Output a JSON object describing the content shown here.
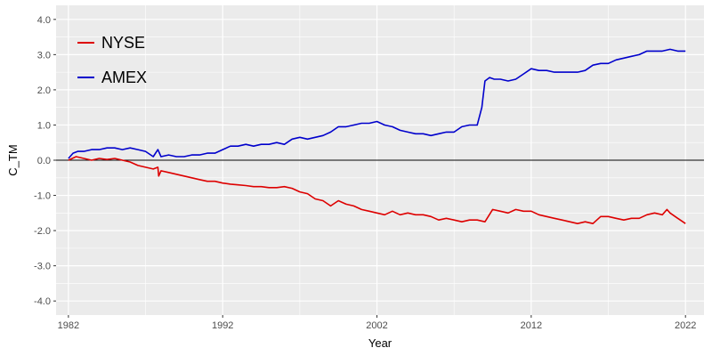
{
  "chart_data": {
    "type": "line",
    "xlabel": "Year",
    "ylabel": "C_TM",
    "xlim": [
      1981.2,
      2023.2
    ],
    "ylim": [
      -4.4,
      4.4
    ],
    "x_ticks": [
      {
        "value": 1982,
        "label": "1982"
      },
      {
        "value": 1992,
        "label": "1992"
      },
      {
        "value": 2002,
        "label": "2002"
      },
      {
        "value": 2012,
        "label": "2012"
      },
      {
        "value": 2022,
        "label": "2022"
      }
    ],
    "y_ticks": [
      {
        "value": 4,
        "label": "4.0"
      },
      {
        "value": 3,
        "label": "3.0"
      },
      {
        "value": 2,
        "label": "2.0"
      },
      {
        "value": 1,
        "label": "1.0"
      },
      {
        "value": 0,
        "label": "0.0"
      },
      {
        "value": -1,
        "label": "-1.0"
      },
      {
        "value": -2,
        "label": "-2.0"
      },
      {
        "value": -3,
        "label": "-3.0"
      },
      {
        "value": -4,
        "label": "-4.0"
      }
    ],
    "reference_line": {
      "y": 0,
      "color": "#000000"
    },
    "grid": true,
    "legend_position": "top-left",
    "background": "#ebebeb",
    "grid_color": "#ffffff",
    "series": [
      {
        "name": "NYSE",
        "color": "#dd0000",
        "x": [
          1982.0,
          1982.5,
          1983.0,
          1983.5,
          1984.0,
          1984.5,
          1985.0,
          1985.5,
          1986.0,
          1986.5,
          1987.0,
          1987.5,
          1987.8,
          1987.85,
          1988.0,
          1988.5,
          1989.0,
          1989.5,
          1990.0,
          1990.5,
          1991.0,
          1991.5,
          1992.0,
          1992.5,
          1993.0,
          1993.5,
          1994.0,
          1994.5,
          1995.0,
          1995.5,
          1996.0,
          1996.5,
          1997.0,
          1997.5,
          1998.0,
          1998.5,
          1999.0,
          1999.5,
          2000.0,
          2000.5,
          2001.0,
          2001.5,
          2002.0,
          2002.5,
          2003.0,
          2003.5,
          2004.0,
          2004.5,
          2005.0,
          2005.5,
          2006.0,
          2006.5,
          2007.0,
          2007.5,
          2008.0,
          2008.5,
          2009.0,
          2009.5,
          2010.0,
          2010.5,
          2011.0,
          2011.5,
          2012.0,
          2012.5,
          2013.0,
          2013.5,
          2014.0,
          2014.5,
          2015.0,
          2015.5,
          2016.0,
          2016.5,
          2017.0,
          2017.5,
          2018.0,
          2018.5,
          2019.0,
          2019.5,
          2020.0,
          2020.5,
          2020.8,
          2021.0,
          2021.5,
          2022.0
        ],
        "y": [
          0.0,
          0.1,
          0.05,
          0.0,
          0.05,
          0.02,
          0.05,
          0.0,
          -0.05,
          -0.15,
          -0.2,
          -0.25,
          -0.2,
          -0.45,
          -0.3,
          -0.35,
          -0.4,
          -0.45,
          -0.5,
          -0.55,
          -0.6,
          -0.6,
          -0.65,
          -0.68,
          -0.7,
          -0.72,
          -0.75,
          -0.75,
          -0.78,
          -0.78,
          -0.75,
          -0.8,
          -0.9,
          -0.95,
          -1.1,
          -1.15,
          -1.3,
          -1.15,
          -1.25,
          -1.3,
          -1.4,
          -1.45,
          -1.5,
          -1.55,
          -1.45,
          -1.55,
          -1.5,
          -1.55,
          -1.55,
          -1.6,
          -1.7,
          -1.65,
          -1.7,
          -1.75,
          -1.7,
          -1.7,
          -1.75,
          -1.4,
          -1.45,
          -1.5,
          -1.4,
          -1.45,
          -1.45,
          -1.55,
          -1.6,
          -1.65,
          -1.7,
          -1.75,
          -1.8,
          -1.75,
          -1.8,
          -1.6,
          -1.6,
          -1.65,
          -1.7,
          -1.65,
          -1.65,
          -1.55,
          -1.5,
          -1.55,
          -1.4,
          -1.5,
          -1.65,
          -1.8
        ]
      },
      {
        "name": "AMEX",
        "color": "#0000cc",
        "x": [
          1982.0,
          1982.3,
          1982.6,
          1983.0,
          1983.5,
          1984.0,
          1984.5,
          1985.0,
          1985.5,
          1986.0,
          1986.5,
          1987.0,
          1987.5,
          1987.8,
          1988.0,
          1988.5,
          1989.0,
          1989.5,
          1990.0,
          1990.5,
          1991.0,
          1991.5,
          1992.0,
          1992.5,
          1993.0,
          1993.5,
          1994.0,
          1994.5,
          1995.0,
          1995.5,
          1996.0,
          1996.5,
          1997.0,
          1997.5,
          1998.0,
          1998.5,
          1999.0,
          1999.5,
          2000.0,
          2000.5,
          2001.0,
          2001.5,
          2002.0,
          2002.5,
          2003.0,
          2003.5,
          2004.0,
          2004.5,
          2005.0,
          2005.5,
          2006.0,
          2006.5,
          2007.0,
          2007.5,
          2008.0,
          2008.5,
          2008.8,
          2009.0,
          2009.3,
          2009.6,
          2010.0,
          2010.5,
          2011.0,
          2011.5,
          2012.0,
          2012.5,
          2013.0,
          2013.5,
          2014.0,
          2014.5,
          2015.0,
          2015.5,
          2016.0,
          2016.5,
          2017.0,
          2017.5,
          2018.0,
          2018.5,
          2019.0,
          2019.5,
          2020.0,
          2020.5,
          2021.0,
          2021.5,
          2022.0
        ],
        "y": [
          0.05,
          0.2,
          0.25,
          0.25,
          0.3,
          0.3,
          0.35,
          0.35,
          0.3,
          0.35,
          0.3,
          0.25,
          0.1,
          0.3,
          0.1,
          0.15,
          0.1,
          0.1,
          0.15,
          0.15,
          0.2,
          0.2,
          0.3,
          0.4,
          0.4,
          0.45,
          0.4,
          0.45,
          0.45,
          0.5,
          0.45,
          0.6,
          0.65,
          0.6,
          0.65,
          0.7,
          0.8,
          0.95,
          0.95,
          1.0,
          1.05,
          1.05,
          1.1,
          1.0,
          0.95,
          0.85,
          0.8,
          0.75,
          0.75,
          0.7,
          0.75,
          0.8,
          0.8,
          0.95,
          1.0,
          1.0,
          1.5,
          2.25,
          2.35,
          2.3,
          2.3,
          2.25,
          2.3,
          2.45,
          2.6,
          2.55,
          2.55,
          2.5,
          2.5,
          2.5,
          2.5,
          2.55,
          2.7,
          2.75,
          2.75,
          2.85,
          2.9,
          2.95,
          3.0,
          3.1,
          3.1,
          3.1,
          3.15,
          3.1,
          3.1
        ]
      }
    ]
  }
}
